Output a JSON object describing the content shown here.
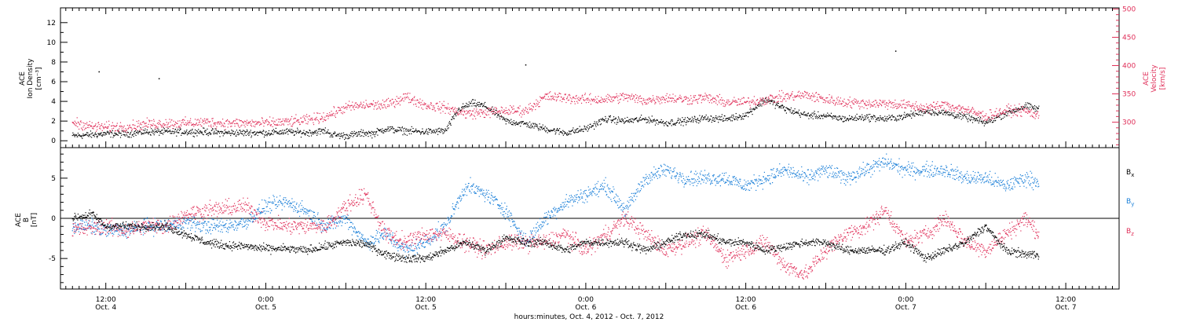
{
  "chart_data": [
    {
      "type": "scatter",
      "panel": "top",
      "ylabel_left": [
        "ACE",
        "Ion Density",
        "[cm⁻³]"
      ],
      "ylabel_right": [
        "ACE",
        "Velocity",
        "[km/s]"
      ],
      "yticks_left": [
        "0",
        "2",
        "4",
        "6",
        "8",
        "10",
        "12"
      ],
      "yticks_right": [
        "300",
        "350",
        "400",
        "450",
        "500"
      ],
      "ylim_left": [
        -0.7,
        13.5
      ],
      "ylim_right": [
        255,
        502
      ],
      "series": [
        {
          "axis": "left",
          "color": "#000000",
          "x": [
            -5,
            -2,
            0,
            3,
            6,
            9,
            12,
            15,
            18,
            21,
            24,
            27,
            30,
            33,
            34,
            36,
            39,
            40,
            42,
            45,
            48,
            51,
            53,
            55,
            57,
            60,
            63,
            66,
            69,
            72,
            75,
            78,
            81,
            84,
            87,
            90,
            93,
            96,
            99,
            102,
            105,
            108,
            111,
            114,
            117,
            120,
            123,
            126,
            129,
            132,
            135,
            138,
            140
          ],
          "y": [
            0.5,
            0.6,
            0.7,
            0.7,
            0.9,
            0.9,
            0.9,
            0.9,
            0.8,
            0.8,
            0.8,
            0.9,
            0.8,
            1.0,
            0.6,
            0.5,
            0.8,
            0.7,
            1.2,
            1.0,
            0.9,
            1.0,
            3.2,
            3.8,
            3.5,
            2.0,
            1.7,
            1.2,
            0.8,
            1.2,
            2.2,
            2.0,
            2.2,
            1.8,
            2.0,
            2.3,
            2.2,
            2.6,
            4.2,
            3.2,
            2.6,
            2.5,
            2.2,
            2.4,
            2.2,
            2.5,
            3.0,
            2.8,
            2.4,
            1.8,
            2.8,
            3.5,
            3.2
          ]
        },
        {
          "axis": "right",
          "color": "#e0305a",
          "x": [
            -5,
            -2,
            0,
            3,
            6,
            9,
            12,
            15,
            18,
            21,
            24,
            27,
            30,
            33,
            36,
            39,
            42,
            45,
            48,
            51,
            54,
            57,
            60,
            63,
            66,
            69,
            72,
            75,
            78,
            81,
            84,
            87,
            90,
            93,
            96,
            99,
            102,
            105,
            108,
            111,
            114,
            117,
            120,
            123,
            126,
            129,
            132,
            135,
            138,
            140
          ],
          "y": [
            300,
            292,
            291,
            292,
            296,
            298,
            298,
            300,
            298,
            298,
            298,
            300,
            303,
            310,
            326,
            330,
            330,
            345,
            330,
            325,
            315,
            317,
            320,
            320,
            345,
            343,
            340,
            340,
            345,
            338,
            343,
            340,
            343,
            335,
            335,
            340,
            345,
            348,
            340,
            335,
            333,
            333,
            330,
            325,
            330,
            322,
            310,
            320,
            320,
            310
          ]
        },
        {
          "axis": "left",
          "color": "#000000",
          "x": [
            -1,
            8,
            63,
            118.5
          ],
          "y": [
            7.0,
            6.3,
            7.7,
            9.1
          ]
        }
      ],
      "xlim": [
        -6.8,
        152
      ]
    },
    {
      "type": "scatter",
      "panel": "bottom",
      "ylabel_left": [
        "ACE",
        "B",
        "[nT]"
      ],
      "yticks_left": [
        "-5",
        "0",
        "5"
      ],
      "ylim_left": [
        -8.8,
        8.8
      ],
      "legend": [
        {
          "label": "Bx",
          "main": "B",
          "sub": "x",
          "color": "#000000"
        },
        {
          "label": "By",
          "main": "B",
          "sub": "y",
          "color": "#1a7fd8"
        },
        {
          "label": "Bz",
          "main": "B",
          "sub": "z",
          "color": "#e0305a"
        }
      ],
      "legend_placement": "right",
      "series": [
        {
          "name": "Bx",
          "color": "#000000",
          "x": [
            -5,
            -2,
            0,
            3,
            6,
            9,
            12,
            15,
            18,
            21,
            24,
            27,
            30,
            33,
            36,
            39,
            42,
            45,
            48,
            51,
            54,
            57,
            60,
            63,
            66,
            69,
            72,
            75,
            78,
            81,
            84,
            87,
            90,
            93,
            96,
            99,
            102,
            105,
            108,
            111,
            114,
            117,
            120,
            123,
            126,
            129,
            132,
            135,
            138,
            140
          ],
          "y": [
            0,
            0.5,
            -1,
            -1,
            -1,
            -1,
            -2,
            -3,
            -3.4,
            -3.5,
            -3.8,
            -3.8,
            -4,
            -3.5,
            -3,
            -3.2,
            -4.5,
            -5,
            -5,
            -4,
            -3,
            -4,
            -2.5,
            -3,
            -3,
            -4,
            -3,
            -3,
            -3,
            -4,
            -3,
            -2,
            -2,
            -3,
            -3,
            -4,
            -3.5,
            -3,
            -3,
            -4,
            -4,
            -4,
            -3,
            -5,
            -4,
            -3,
            -1,
            -4,
            -4.5,
            -4.5
          ]
        },
        {
          "name": "By",
          "color": "#1a7fd8",
          "x": [
            -5,
            -2,
            0,
            3,
            6,
            9,
            12,
            15,
            18,
            21,
            24,
            27,
            30,
            33,
            36,
            39,
            42,
            45,
            48,
            51,
            54,
            57,
            60,
            63,
            66,
            69,
            72,
            75,
            78,
            81,
            84,
            87,
            90,
            93,
            96,
            99,
            102,
            105,
            108,
            111,
            114,
            117,
            120,
            123,
            126,
            129,
            132,
            135,
            138,
            140
          ],
          "y": [
            -1,
            -1,
            -1.5,
            -1.5,
            -1,
            -1,
            -0.5,
            -1,
            -1,
            -0.5,
            1.5,
            2,
            1,
            -1,
            0,
            -3,
            -2,
            -4,
            -3,
            -1,
            4,
            3,
            1,
            -3,
            0,
            2,
            3,
            4,
            1,
            5,
            6,
            5,
            5,
            5,
            4,
            5,
            6,
            5,
            6,
            5,
            6,
            7,
            6,
            6,
            6,
            5,
            5,
            4,
            5,
            4.5
          ]
        },
        {
          "name": "Bz",
          "color": "#e0305a",
          "x": [
            -5,
            -2,
            0,
            3,
            6,
            9,
            12,
            15,
            18,
            21,
            24,
            27,
            30,
            33,
            36,
            39,
            42,
            45,
            48,
            51,
            54,
            57,
            60,
            63,
            66,
            69,
            72,
            75,
            78,
            81,
            84,
            87,
            90,
            93,
            96,
            99,
            102,
            105,
            108,
            111,
            114,
            117,
            120,
            123,
            126,
            129,
            132,
            135,
            138,
            140
          ],
          "y": [
            -1.5,
            -1.2,
            -1,
            -1.5,
            -1,
            -1,
            0.5,
            1,
            1.2,
            1.5,
            -0.5,
            -1,
            -1,
            -1,
            1.5,
            3,
            -2,
            -3,
            -2,
            -2,
            -3,
            -4,
            -3,
            -3,
            -3,
            -2,
            -4,
            -2,
            0,
            -2,
            -4,
            -3,
            -2,
            -5,
            -4,
            -3,
            -6,
            -7,
            -4,
            -2,
            -1,
            1,
            -3,
            -2,
            0,
            -3,
            -4,
            -2,
            0,
            -2
          ]
        }
      ],
      "xlim": [
        -6.8,
        152
      ]
    }
  ],
  "x_axis": {
    "xlabel": "hours:minutes, Oct.  4, 2012 - Oct.  7, 2012",
    "ticks": [
      {
        "t": 0,
        "time": "12:00",
        "date": "Oct. 4"
      },
      {
        "t": 24,
        "time": "0:00",
        "date": "Oct. 5"
      },
      {
        "t": 48,
        "time": "12:00",
        "date": "Oct. 5"
      },
      {
        "t": 72,
        "time": "0:00",
        "date": "Oct. 6"
      },
      {
        "t": 96,
        "time": "12:00",
        "date": "Oct. 6"
      },
      {
        "t": 120,
        "time": "0:00",
        "date": "Oct. 7"
      },
      {
        "t": 144,
        "time": "12:00",
        "date": "Oct. 7"
      }
    ],
    "minor_step_hours": 1
  }
}
